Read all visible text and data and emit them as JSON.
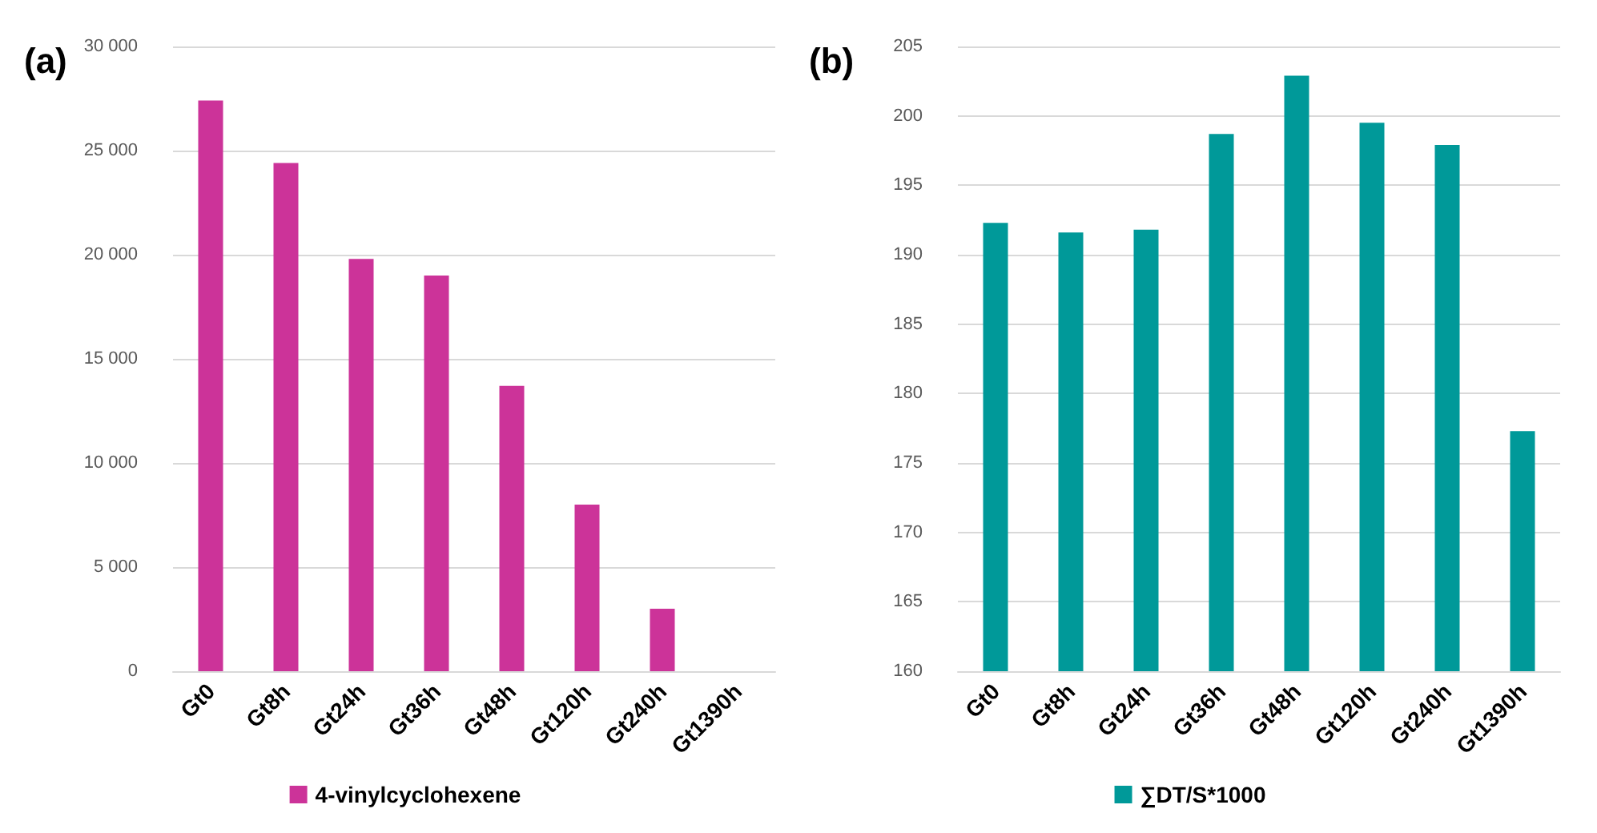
{
  "chart_data": [
    {
      "type": "bar",
      "title": "(a)",
      "categories": [
        "Gt0",
        "Gt8h",
        "Gt24h",
        "Gt36h",
        "Gt48h",
        "Gt120h",
        "Gt240h",
        "Gt1390h"
      ],
      "series": [
        {
          "name": "4-vinylcyclohexene",
          "color": "#cc3399",
          "values": [
            27400,
            24400,
            19800,
            19000,
            13700,
            8000,
            3000,
            0
          ]
        }
      ],
      "ylim": [
        0,
        30000
      ],
      "yticks": [
        0,
        {
          "value": 5000,
          "label": "5 000"
        },
        {
          "value": 10000,
          "label": "10 000"
        },
        {
          "value": 15000,
          "label": "15 000"
        },
        {
          "value": 20000,
          "label": "20 000"
        },
        {
          "value": 25000,
          "label": "25 000"
        },
        {
          "value": 30000,
          "label": "30 000"
        }
      ],
      "grid": "y",
      "legend": "bottom"
    },
    {
      "type": "bar",
      "title": "(b)",
      "categories": [
        "Gt0",
        "Gt8h",
        "Gt24h",
        "Gt36h",
        "Gt48h",
        "Gt120h",
        "Gt240h",
        "Gt1390h"
      ],
      "series": [
        {
          "name": "∑DT/S*1000",
          "color": "#009999",
          "values": [
            192.3,
            191.6,
            191.8,
            198.7,
            202.9,
            199.5,
            197.9,
            177.3
          ]
        }
      ],
      "ylim": [
        160,
        205
      ],
      "yticks": [
        160,
        165,
        170,
        175,
        180,
        185,
        190,
        195,
        200,
        205
      ],
      "grid": "y",
      "legend": "bottom"
    }
  ]
}
